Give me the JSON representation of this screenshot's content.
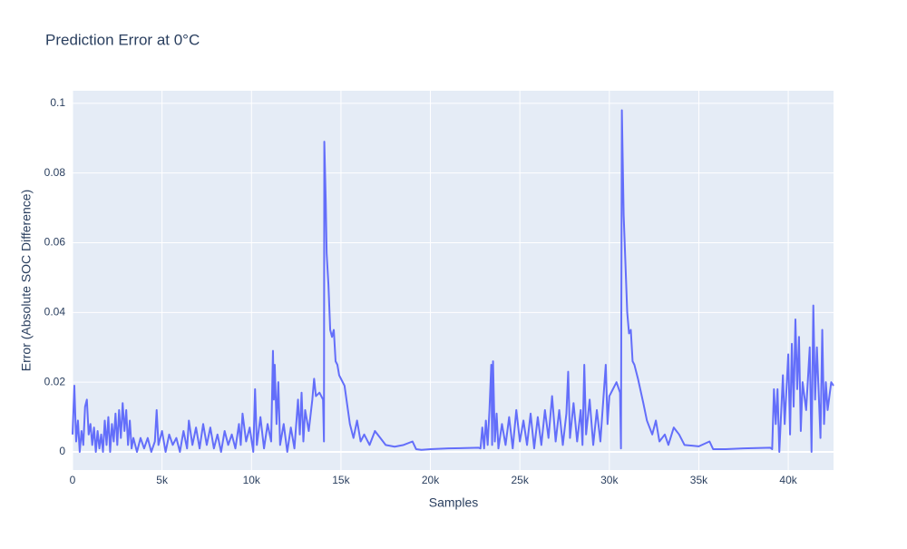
{
  "chart_data": {
    "type": "line",
    "title": "Prediction Error at 0°C",
    "xlabel": "Samples",
    "ylabel": "Error (Absolute SOC Difference)",
    "x": [
      0,
      100,
      200,
      300,
      400,
      500,
      600,
      700,
      800,
      900,
      1000,
      1100,
      1200,
      1300,
      1400,
      1500,
      1600,
      1700,
      1800,
      1900,
      2000,
      2100,
      2200,
      2300,
      2400,
      2500,
      2600,
      2700,
      2800,
      2900,
      3000,
      3100,
      3200,
      3300,
      3400,
      3600,
      3800,
      4000,
      4200,
      4400,
      4600,
      4700,
      4800,
      5000,
      5200,
      5400,
      5600,
      5800,
      6000,
      6200,
      6400,
      6500,
      6700,
      6900,
      7100,
      7300,
      7500,
      7700,
      7900,
      8100,
      8300,
      8500,
      8700,
      8900,
      9100,
      9300,
      9400,
      9500,
      9700,
      9900,
      10100,
      10200,
      10300,
      10500,
      10700,
      10900,
      11100,
      11200,
      11250,
      11300,
      11400,
      11500,
      11600,
      11800,
      12000,
      12200,
      12400,
      12600,
      12700,
      12800,
      12900,
      13000,
      13200,
      13400,
      13500,
      13600,
      13800,
      14000,
      14050,
      14070,
      14150,
      14200,
      14300,
      14400,
      14500,
      14600,
      14700,
      14800,
      14900,
      15200,
      15500,
      15700,
      15900,
      16100,
      16300,
      16600,
      16900,
      17200,
      17500,
      18000,
      18500,
      19000,
      19200,
      19500,
      20000,
      21000,
      22700,
      22800,
      22900,
      23000,
      23100,
      23200,
      23300,
      23400,
      23450,
      23500,
      23600,
      23700,
      23800,
      24000,
      24200,
      24400,
      24600,
      24800,
      25000,
      25200,
      25400,
      25600,
      25800,
      26000,
      26200,
      26400,
      26600,
      26800,
      27000,
      27200,
      27400,
      27600,
      27700,
      27800,
      28000,
      28200,
      28400,
      28500,
      28600,
      28700,
      28900,
      29100,
      29300,
      29500,
      29800,
      29900,
      30000,
      30200,
      30400,
      30600,
      30650,
      30700,
      30800,
      31000,
      31100,
      31200,
      31300,
      31400,
      31600,
      31900,
      32100,
      32400,
      32600,
      32800,
      33100,
      33300,
      33600,
      33900,
      34200,
      35000,
      35600,
      35800,
      36500,
      37500,
      39000,
      39100,
      39200,
      39300,
      39400,
      39500,
      39700,
      39800,
      40000,
      40100,
      40200,
      40300,
      40400,
      40500,
      40600,
      40700,
      40800,
      41000,
      41200,
      41300,
      41400,
      41500,
      41600,
      41800,
      41900,
      42000,
      42100,
      42200,
      42400,
      42530
    ],
    "series": [
      {
        "color": "#636efa",
        "values": [
          0.005,
          0.019,
          0.003,
          0.009,
          0,
          0.006,
          0.002,
          0.013,
          0.015,
          0.005,
          0.008,
          0.002,
          0.007,
          0,
          0.006,
          0.001,
          0.005,
          0,
          0.009,
          0.002,
          0.01,
          0,
          0.008,
          0.003,
          0.011,
          0.002,
          0.012,
          0.004,
          0.014,
          0.006,
          0.012,
          0.002,
          0.009,
          0.001,
          0.004,
          0,
          0.004,
          0.001,
          0.004,
          0,
          0.003,
          0.012,
          0.002,
          0.006,
          0,
          0.005,
          0.002,
          0.004,
          0,
          0.006,
          0.001,
          0.009,
          0.002,
          0.007,
          0.001,
          0.008,
          0.002,
          0.007,
          0.001,
          0.005,
          0,
          0.006,
          0.002,
          0.005,
          0.001,
          0.008,
          0.002,
          0.011,
          0.003,
          0.007,
          0,
          0.018,
          0.002,
          0.01,
          0.001,
          0.008,
          0.003,
          0.029,
          0.015,
          0.025,
          0.008,
          0.02,
          0.002,
          0.008,
          0,
          0.007,
          0.001,
          0.015,
          0.005,
          0.017,
          0.003,
          0.012,
          0.006,
          0.015,
          0.021,
          0.016,
          0.017,
          0.015,
          0.003,
          0.089,
          0.072,
          0.057,
          0.048,
          0.035,
          0.033,
          0.035,
          0.026,
          0.025,
          0.022,
          0.019,
          0.008,
          0.004,
          0.009,
          0.003,
          0.005,
          0.002,
          0.006,
          0.004,
          0.002,
          0.0015,
          0.002,
          0.003,
          0.0008,
          0.0006,
          0.0008,
          0.001,
          0.0012,
          0.001,
          0.007,
          0.001,
          0.009,
          0.002,
          0.012,
          0.025,
          0.002,
          0.026,
          0.003,
          0.011,
          0.001,
          0.008,
          0.002,
          0.01,
          0.001,
          0.012,
          0.003,
          0.009,
          0.002,
          0.011,
          0.001,
          0.01,
          0.002,
          0.012,
          0.004,
          0.016,
          0.003,
          0.012,
          0.002,
          0.011,
          0.023,
          0.004,
          0.014,
          0.003,
          0.012,
          0.002,
          0.025,
          0.005,
          0.015,
          0.002,
          0.012,
          0.003,
          0.025,
          0.008,
          0.016,
          0.018,
          0.02,
          0.017,
          0.001,
          0.098,
          0.068,
          0.04,
          0.034,
          0.035,
          0.026,
          0.025,
          0.021,
          0.014,
          0.009,
          0.005,
          0.009,
          0.003,
          0.005,
          0.002,
          0.007,
          0.005,
          0.002,
          0.0016,
          0.003,
          0.0008,
          0.0008,
          0.001,
          0.0012,
          0.0008,
          0.018,
          0.008,
          0.018,
          0,
          0.022,
          0.008,
          0.028,
          0.005,
          0.031,
          0.013,
          0.038,
          0.018,
          0.033,
          0.006,
          0.02,
          0.012,
          0.03,
          0,
          0.042,
          0.015,
          0.03,
          0.004,
          0.035,
          0.008,
          0.02,
          0.012,
          0.02,
          0.019
        ]
      }
    ],
    "xlim": [
      0,
      42530
    ],
    "ylim": [
      -0.0052,
      0.1036
    ],
    "xticks": [
      0,
      {
        "value": 5000,
        "label": "5k"
      },
      {
        "value": 10000,
        "label": "10k"
      },
      {
        "value": 15000,
        "label": "15k"
      },
      {
        "value": 20000,
        "label": "20k"
      },
      {
        "value": 25000,
        "label": "25k"
      },
      {
        "value": 30000,
        "label": "30k"
      },
      {
        "value": 35000,
        "label": "35k"
      },
      {
        "value": 40000,
        "label": "40k"
      }
    ],
    "yticks": [
      0,
      0.02,
      0.04,
      0.06,
      0.08,
      0.1
    ],
    "grid": true
  }
}
